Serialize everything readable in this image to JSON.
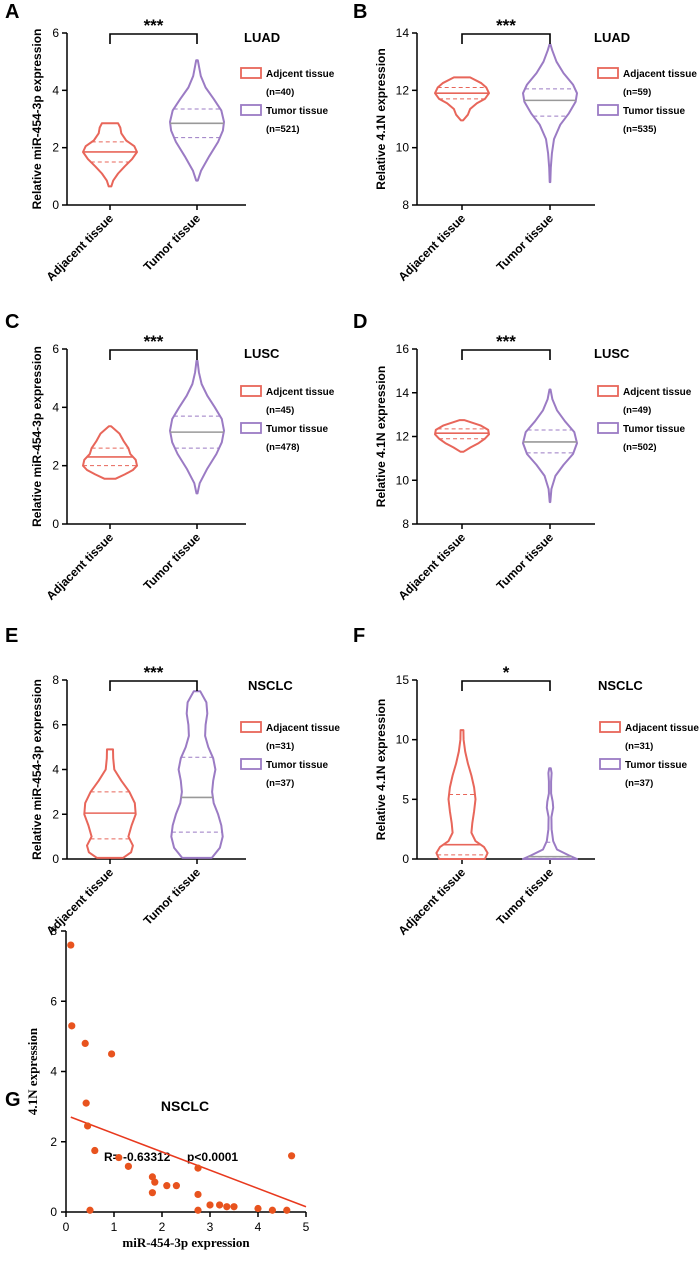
{
  "colors": {
    "adjacent": "#e8665a",
    "tumor": "#9b7bc4",
    "axis": "#000000",
    "median": "#999999",
    "scatter_point": "#e8531e",
    "reg_line": "#e8391e"
  },
  "chart_data": [
    {
      "id": "A",
      "type": "violin",
      "letter": "A",
      "cohort": "LUAD",
      "ylabel": "Relative miR-454-3p  expression",
      "ylim": [
        0,
        6
      ],
      "yticks": [
        0,
        2,
        4,
        6
      ],
      "significance": "***",
      "categories": [
        "Adjacent tissue",
        "Tumor tissue"
      ],
      "legend": [
        {
          "label": "Adjcent tissue",
          "n": "(n=40)"
        },
        {
          "label": "Tumor tissue",
          "n": "(n=521)"
        }
      ],
      "groups": [
        {
          "name": "Adjacent tissue",
          "min": 0.65,
          "max": 2.85,
          "q1": 1.5,
          "median": 1.85,
          "q3": 2.2,
          "profile": [
            [
              0.65,
              0.05
            ],
            [
              0.85,
              0.12
            ],
            [
              1.1,
              0.3
            ],
            [
              1.35,
              0.55
            ],
            [
              1.6,
              0.82
            ],
            [
              1.85,
              1.0
            ],
            [
              2.05,
              0.9
            ],
            [
              2.25,
              0.6
            ],
            [
              2.5,
              0.42
            ],
            [
              2.7,
              0.38
            ],
            [
              2.85,
              0.3
            ]
          ]
        },
        {
          "name": "Tumor tissue",
          "min": 0.85,
          "max": 5.05,
          "q1": 2.35,
          "median": 2.85,
          "q3": 3.35,
          "profile": [
            [
              0.85,
              0.03
            ],
            [
              1.2,
              0.15
            ],
            [
              1.7,
              0.45
            ],
            [
              2.2,
              0.78
            ],
            [
              2.6,
              0.96
            ],
            [
              2.9,
              1.0
            ],
            [
              3.3,
              0.9
            ],
            [
              3.7,
              0.62
            ],
            [
              4.1,
              0.32
            ],
            [
              4.5,
              0.14
            ],
            [
              4.85,
              0.07
            ],
            [
              5.05,
              0.03
            ]
          ]
        }
      ]
    },
    {
      "id": "B",
      "type": "violin",
      "letter": "B",
      "cohort": "LUAD",
      "ylabel": "Relative 4.1N  expression",
      "ylim": [
        8,
        14
      ],
      "yticks": [
        8,
        10,
        12,
        14
      ],
      "significance": "***",
      "categories": [
        "Adjacent tissue",
        "Tumor tissue"
      ],
      "legend": [
        {
          "label": "Adjacent tissue",
          "n": "(n=59)"
        },
        {
          "label": "Tumor tissue",
          "n": "(n=535)"
        }
      ],
      "groups": [
        {
          "name": "Adjacent tissue",
          "min": 10.95,
          "max": 12.45,
          "q1": 11.7,
          "median": 11.9,
          "q3": 12.1,
          "profile": [
            [
              10.95,
              0.04
            ],
            [
              11.15,
              0.22
            ],
            [
              11.35,
              0.3
            ],
            [
              11.55,
              0.55
            ],
            [
              11.7,
              0.85
            ],
            [
              11.9,
              1.0
            ],
            [
              12.1,
              0.9
            ],
            [
              12.25,
              0.72
            ],
            [
              12.45,
              0.3
            ]
          ]
        },
        {
          "name": "Tumor tissue",
          "min": 8.8,
          "max": 13.6,
          "q1": 11.1,
          "median": 11.65,
          "q3": 12.05,
          "profile": [
            [
              8.8,
              0.01
            ],
            [
              9.3,
              0.03
            ],
            [
              9.8,
              0.07
            ],
            [
              10.3,
              0.15
            ],
            [
              10.8,
              0.38
            ],
            [
              11.2,
              0.7
            ],
            [
              11.6,
              0.95
            ],
            [
              11.9,
              1.0
            ],
            [
              12.2,
              0.85
            ],
            [
              12.6,
              0.5
            ],
            [
              13.0,
              0.24
            ],
            [
              13.4,
              0.08
            ],
            [
              13.6,
              0.02
            ]
          ]
        }
      ]
    },
    {
      "id": "C",
      "type": "violin",
      "letter": "C",
      "cohort": "LUSC",
      "ylabel": "Relative miR-454-3p  expression",
      "ylim": [
        0,
        6
      ],
      "yticks": [
        0,
        2,
        4,
        6
      ],
      "significance": "***",
      "categories": [
        "Adjacent tissue",
        "Tumor tissue"
      ],
      "legend": [
        {
          "label": "Adjcent tissue",
          "n": "(n=45)"
        },
        {
          "label": "Tumor tissue",
          "n": "(n=478)"
        }
      ],
      "groups": [
        {
          "name": "Adjacent tissue",
          "min": 1.55,
          "max": 3.35,
          "q1": 2.0,
          "median": 2.3,
          "q3": 2.6,
          "profile": [
            [
              1.55,
              0.2
            ],
            [
              1.7,
              0.55
            ],
            [
              1.85,
              0.85
            ],
            [
              2.0,
              1.0
            ],
            [
              2.2,
              0.95
            ],
            [
              2.4,
              0.75
            ],
            [
              2.6,
              0.68
            ],
            [
              2.85,
              0.5
            ],
            [
              3.1,
              0.35
            ],
            [
              3.35,
              0.04
            ]
          ]
        },
        {
          "name": "Tumor tissue",
          "min": 1.05,
          "max": 5.6,
          "q1": 2.6,
          "median": 3.15,
          "q3": 3.7,
          "profile": [
            [
              1.05,
              0.02
            ],
            [
              1.4,
              0.1
            ],
            [
              1.9,
              0.38
            ],
            [
              2.4,
              0.72
            ],
            [
              2.8,
              0.92
            ],
            [
              3.2,
              1.0
            ],
            [
              3.6,
              0.92
            ],
            [
              4.0,
              0.66
            ],
            [
              4.4,
              0.38
            ],
            [
              4.8,
              0.17
            ],
            [
              5.2,
              0.07
            ],
            [
              5.6,
              0.02
            ]
          ]
        }
      ]
    },
    {
      "id": "D",
      "type": "violin",
      "letter": "D",
      "cohort": "LUSC",
      "ylabel": "Relative 4.1N  expression",
      "ylim": [
        8,
        16
      ],
      "yticks": [
        8,
        10,
        12,
        14,
        16
      ],
      "significance": "***",
      "categories": [
        "Adjacent tissue",
        "Tumor tissue"
      ],
      "legend": [
        {
          "label": "Adjcent tissue",
          "n": "(n=49)"
        },
        {
          "label": "Tumor tissue",
          "n": "(n=502)"
        }
      ],
      "groups": [
        {
          "name": "Adjacent tissue",
          "min": 11.3,
          "max": 12.75,
          "q1": 11.9,
          "median": 12.15,
          "q3": 12.35,
          "profile": [
            [
              11.3,
              0.05
            ],
            [
              11.5,
              0.32
            ],
            [
              11.7,
              0.62
            ],
            [
              11.9,
              0.85
            ],
            [
              12.1,
              1.0
            ],
            [
              12.3,
              0.97
            ],
            [
              12.5,
              0.7
            ],
            [
              12.75,
              0.08
            ]
          ]
        },
        {
          "name": "Tumor tissue",
          "min": 9.0,
          "max": 14.15,
          "q1": 11.25,
          "median": 11.75,
          "q3": 12.3,
          "profile": [
            [
              9.0,
              0.01
            ],
            [
              9.6,
              0.05
            ],
            [
              10.2,
              0.2
            ],
            [
              10.7,
              0.5
            ],
            [
              11.2,
              0.85
            ],
            [
              11.7,
              1.0
            ],
            [
              12.2,
              0.9
            ],
            [
              12.7,
              0.55
            ],
            [
              13.2,
              0.26
            ],
            [
              13.7,
              0.09
            ],
            [
              14.15,
              0.02
            ]
          ]
        }
      ]
    },
    {
      "id": "E",
      "type": "violin",
      "letter": "E",
      "cohort": "NSCLC",
      "ylabel": "Relative miR-454-3p expression",
      "ylim": [
        0,
        8
      ],
      "yticks": [
        0,
        2,
        4,
        6,
        8
      ],
      "significance": "***",
      "categories": [
        "Adjacent tissue",
        "Tumor tissue"
      ],
      "legend": [
        {
          "label": "Adjacent tissue",
          "n": "(n=31)"
        },
        {
          "label": "Tumor tissue",
          "n": "(n=37)"
        }
      ],
      "groups": [
        {
          "name": "Adjacent tissue",
          "min": 0.05,
          "max": 4.9,
          "q1": 0.9,
          "median": 2.05,
          "q3": 3.0,
          "profile": [
            [
              0.05,
              0.48
            ],
            [
              0.3,
              0.78
            ],
            [
              0.6,
              0.85
            ],
            [
              1.0,
              0.68
            ],
            [
              1.5,
              0.8
            ],
            [
              2.0,
              0.95
            ],
            [
              2.5,
              0.92
            ],
            [
              3.0,
              0.72
            ],
            [
              3.5,
              0.42
            ],
            [
              4.0,
              0.16
            ],
            [
              4.5,
              0.12
            ],
            [
              4.9,
              0.11
            ]
          ]
        },
        {
          "name": "Tumor tissue",
          "min": 0.05,
          "max": 7.5,
          "q1": 1.2,
          "median": 2.75,
          "q3": 4.55,
          "profile": [
            [
              0.05,
              0.55
            ],
            [
              0.5,
              0.85
            ],
            [
              1.0,
              0.95
            ],
            [
              1.5,
              0.9
            ],
            [
              2.0,
              0.78
            ],
            [
              2.5,
              0.62
            ],
            [
              3.0,
              0.56
            ],
            [
              3.5,
              0.6
            ],
            [
              4.0,
              0.68
            ],
            [
              4.5,
              0.6
            ],
            [
              5.0,
              0.42
            ],
            [
              5.5,
              0.3
            ],
            [
              6.0,
              0.32
            ],
            [
              6.5,
              0.38
            ],
            [
              7.0,
              0.35
            ],
            [
              7.5,
              0.12
            ]
          ]
        }
      ]
    },
    {
      "id": "F",
      "type": "violin",
      "letter": "F",
      "cohort": "NSCLC",
      "ylabel": "Relative 4.1N  expression",
      "ylim": [
        0,
        15
      ],
      "yticks": [
        0,
        5,
        10,
        15
      ],
      "significance": "*",
      "categories": [
        "Adjacent tissue",
        "Tumor tissue"
      ],
      "legend": [
        {
          "label": "Adjacent tissue",
          "n": "(n=31)"
        },
        {
          "label": "Tumor tissue",
          "n": "(n=37)"
        }
      ],
      "groups": [
        {
          "name": "Adjacent tissue",
          "min": 0.0,
          "max": 10.8,
          "q1": 0.35,
          "median": 1.2,
          "q3": 5.4,
          "profile": [
            [
              0.0,
              0.85
            ],
            [
              0.5,
              0.95
            ],
            [
              1.0,
              0.82
            ],
            [
              1.5,
              0.5
            ],
            [
              2.2,
              0.35
            ],
            [
              3.0,
              0.38
            ],
            [
              4.0,
              0.45
            ],
            [
              5.0,
              0.5
            ],
            [
              6.0,
              0.45
            ],
            [
              7.0,
              0.35
            ],
            [
              8.0,
              0.22
            ],
            [
              9.0,
              0.12
            ],
            [
              10.0,
              0.06
            ],
            [
              10.8,
              0.05
            ]
          ]
        },
        {
          "name": "Tumor tissue",
          "min": 0.0,
          "max": 7.6,
          "q1": 0.05,
          "median": 0.2,
          "q3": 1.4,
          "profile": [
            [
              0.0,
              1.0
            ],
            [
              0.3,
              0.7
            ],
            [
              0.8,
              0.26
            ],
            [
              1.5,
              0.12
            ],
            [
              2.5,
              0.06
            ],
            [
              3.5,
              0.05
            ],
            [
              4.3,
              0.12
            ],
            [
              4.8,
              0.1
            ],
            [
              5.5,
              0.04
            ],
            [
              6.5,
              0.04
            ],
            [
              7.2,
              0.06
            ],
            [
              7.6,
              0.03
            ]
          ]
        }
      ]
    },
    {
      "id": "G",
      "type": "scatter",
      "letter": "G",
      "title": "NSCLC",
      "xlabel": "miR-454-3p expression",
      "ylabel": "4.1N expression",
      "xlim": [
        0,
        5
      ],
      "ylim": [
        0,
        8
      ],
      "xticks": [
        0,
        1,
        2,
        3,
        4,
        5
      ],
      "yticks": [
        0,
        2,
        4,
        6,
        8
      ],
      "annotation": "R= -0.63312     p<0.0001",
      "points": [
        [
          0.1,
          7.6
        ],
        [
          0.12,
          5.3
        ],
        [
          0.4,
          4.8
        ],
        [
          0.95,
          4.5
        ],
        [
          0.42,
          3.1
        ],
        [
          0.45,
          2.45
        ],
        [
          0.6,
          1.75
        ],
        [
          1.1,
          1.55
        ],
        [
          1.3,
          1.3
        ],
        [
          1.8,
          1.0
        ],
        [
          1.85,
          0.85
        ],
        [
          1.8,
          0.55
        ],
        [
          2.1,
          0.75
        ],
        [
          2.3,
          0.75
        ],
        [
          2.75,
          1.25
        ],
        [
          2.75,
          0.5
        ],
        [
          2.75,
          0.05
        ],
        [
          3.0,
          0.2
        ],
        [
          3.2,
          0.2
        ],
        [
          3.35,
          0.15
        ],
        [
          3.5,
          0.15
        ],
        [
          4.0,
          0.1
        ],
        [
          4.3,
          0.05
        ],
        [
          4.6,
          0.05
        ],
        [
          4.7,
          1.6
        ],
        [
          0.5,
          0.05
        ]
      ],
      "regression": {
        "x0": 0.1,
        "y0": 2.7,
        "x1": 5.0,
        "y1": 0.15
      }
    }
  ]
}
